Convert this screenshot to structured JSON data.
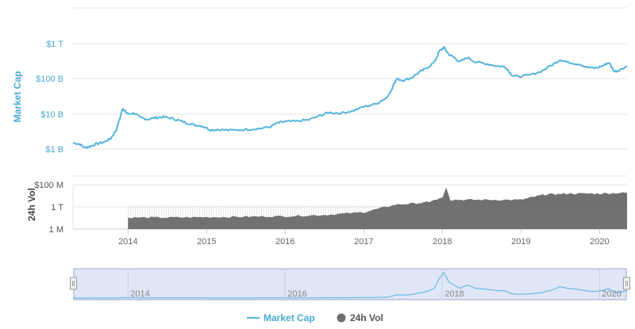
{
  "chart_data": {
    "type": "line",
    "title": "",
    "xlabel": "",
    "x_tick_labels": [
      "2014",
      "2015",
      "2016",
      "2017",
      "2018",
      "2019",
      "2020"
    ],
    "x_range": [
      2013.3,
      2020.35
    ],
    "series": [
      {
        "name": "Market Cap",
        "color": "#55b3dd",
        "scale": "log",
        "ylabel": "Market Cap",
        "y_tick_labels": [
          "$1 B",
          "$10 B",
          "$100 B",
          "$1 T"
        ],
        "y_tick_values": [
          1000000000,
          10000000000,
          100000000000,
          1000000000000
        ],
        "points": [
          [
            2013.3,
            1500000000.0
          ],
          [
            2013.38,
            1400000000.0
          ],
          [
            2013.45,
            1100000000.0
          ],
          [
            2013.52,
            1200000000.0
          ],
          [
            2013.6,
            1400000000.0
          ],
          [
            2013.7,
            1600000000.0
          ],
          [
            2013.78,
            2000000000.0
          ],
          [
            2013.85,
            3500000000.0
          ],
          [
            2013.9,
            8000000000.0
          ],
          [
            2013.93,
            14500000000.0
          ],
          [
            2013.96,
            12000000000.0
          ],
          [
            2014.0,
            10000000000.0
          ],
          [
            2014.08,
            10500000000.0
          ],
          [
            2014.15,
            8000000000.0
          ],
          [
            2014.25,
            7000000000.0
          ],
          [
            2014.35,
            7800000000.0
          ],
          [
            2014.45,
            8200000000.0
          ],
          [
            2014.55,
            7500000000.0
          ],
          [
            2014.65,
            6500000000.0
          ],
          [
            2014.75,
            5500000000.0
          ],
          [
            2014.85,
            4800000000.0
          ],
          [
            2014.95,
            4500000000.0
          ],
          [
            2015.05,
            3500000000.0
          ],
          [
            2015.15,
            3600000000.0
          ],
          [
            2015.3,
            3400000000.0
          ],
          [
            2015.5,
            3600000000.0
          ],
          [
            2015.65,
            3800000000.0
          ],
          [
            2015.8,
            4200000000.0
          ],
          [
            2015.9,
            5500000000.0
          ],
          [
            2016.0,
            6000000000.0
          ],
          [
            2016.15,
            6200000000.0
          ],
          [
            2016.3,
            6800000000.0
          ],
          [
            2016.45,
            9000000000.0
          ],
          [
            2016.55,
            11000000000.0
          ],
          [
            2016.7,
            10500000000.0
          ],
          [
            2016.85,
            12000000000.0
          ],
          [
            2017.0,
            16000000000.0
          ],
          [
            2017.15,
            19000000000.0
          ],
          [
            2017.3,
            30000000000.0
          ],
          [
            2017.42,
            100000000000.0
          ],
          [
            2017.5,
            90000000000.0
          ],
          [
            2017.6,
            105000000000.0
          ],
          [
            2017.7,
            150000000000.0
          ],
          [
            2017.8,
            200000000000.0
          ],
          [
            2017.9,
            300000000000.0
          ],
          [
            2017.96,
            600000000000.0
          ],
          [
            2018.02,
            780000000000.0
          ],
          [
            2018.08,
            500000000000.0
          ],
          [
            2018.15,
            400000000000.0
          ],
          [
            2018.22,
            300000000000.0
          ],
          [
            2018.32,
            400000000000.0
          ],
          [
            2018.42,
            300000000000.0
          ],
          [
            2018.55,
            270000000000.0
          ],
          [
            2018.7,
            230000000000.0
          ],
          [
            2018.8,
            220000000000.0
          ],
          [
            2018.88,
            130000000000.0
          ],
          [
            2018.96,
            115000000000.0
          ],
          [
            2019.1,
            125000000000.0
          ],
          [
            2019.25,
            160000000000.0
          ],
          [
            2019.4,
            250000000000.0
          ],
          [
            2019.5,
            350000000000.0
          ],
          [
            2019.6,
            290000000000.0
          ],
          [
            2019.75,
            260000000000.0
          ],
          [
            2019.85,
            210000000000.0
          ],
          [
            2019.95,
            200000000000.0
          ],
          [
            2020.05,
            240000000000.0
          ],
          [
            2020.12,
            290000000000.0
          ],
          [
            2020.19,
            160000000000.0
          ],
          [
            2020.26,
            180000000000.0
          ],
          [
            2020.35,
            230000000000.0
          ]
        ]
      },
      {
        "name": "24h Vol",
        "color": "#707070",
        "scale": "log",
        "type": "bar",
        "ylabel": "24h Vol",
        "y_tick_labels": [
          "1 M",
          "1 T",
          "$100 M"
        ],
        "start_year": 2014.0,
        "points": [
          [
            2014.0,
            0.26
          ],
          [
            2014.5,
            0.26
          ],
          [
            2015.0,
            0.27
          ],
          [
            2015.5,
            0.28
          ],
          [
            2016.0,
            0.29
          ],
          [
            2016.5,
            0.32
          ],
          [
            2017.0,
            0.38
          ],
          [
            2017.4,
            0.55
          ],
          [
            2017.8,
            0.6
          ],
          [
            2018.0,
            0.7
          ],
          [
            2018.05,
            0.95
          ],
          [
            2018.1,
            0.66
          ],
          [
            2018.5,
            0.66
          ],
          [
            2019.0,
            0.66
          ],
          [
            2019.3,
            0.78
          ],
          [
            2019.6,
            0.8
          ],
          [
            2020.0,
            0.8
          ],
          [
            2020.35,
            0.82
          ]
        ]
      }
    ],
    "legend": {
      "position": "bottom-center",
      "entries": [
        "Market Cap",
        "24h Vol"
      ]
    },
    "navigator": {
      "labels": [
        "2014",
        "2016",
        "2018",
        "2020"
      ]
    }
  }
}
